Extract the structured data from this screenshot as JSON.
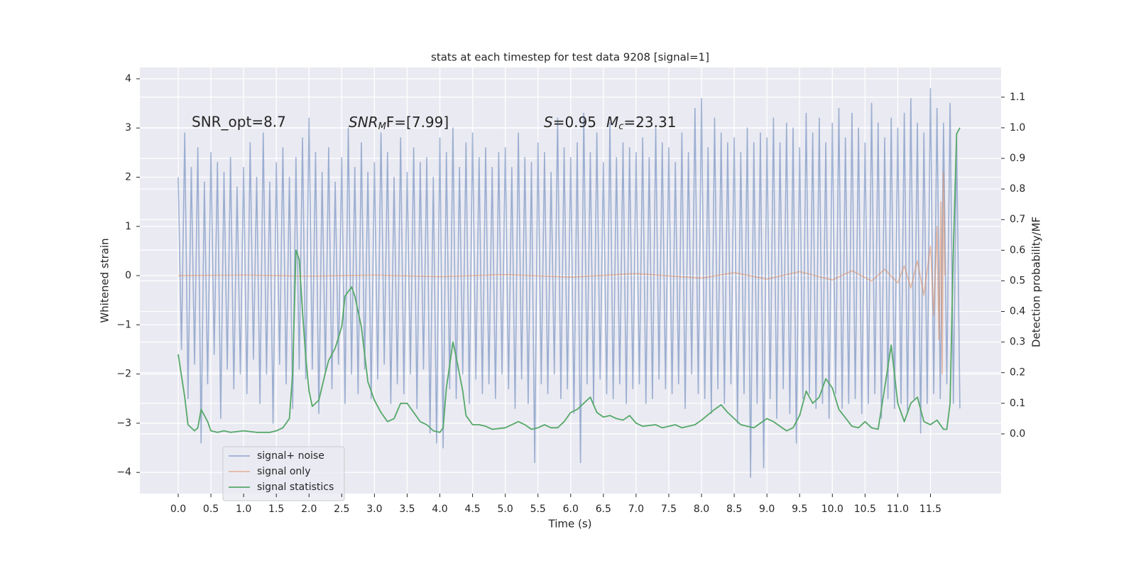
{
  "chart_data": {
    "type": "line",
    "title": "stats at each timestep for test data 9208 [signal=1]",
    "xlabel": "Time (s)",
    "ylabel": "Whitened strain",
    "y2label": "Detection probability/MF",
    "annotations": [
      [
        "SNR_opt=8.7"
      ],
      [
        "SNR",
        "M",
        "F=[7.99]"
      ],
      [
        "S",
        "=0.95",
        "M",
        "c",
        "=23.31"
      ]
    ],
    "grid": true,
    "legend": "lower left",
    "xlim": [
      -0.586,
      12.58
    ],
    "ylim": [
      -4.43,
      4.23
    ],
    "y2lim": [
      -0.195,
      1.197
    ],
    "xticks": [
      {
        "value": 0,
        "label": "0.0"
      },
      0.5,
      {
        "value": 1,
        "label": "1.0"
      },
      1.5,
      {
        "value": 2,
        "label": "2.0"
      },
      2.5,
      {
        "value": 3,
        "label": "3.0"
      },
      3.5,
      {
        "value": 4,
        "label": "4.0"
      },
      4.5,
      {
        "value": 5,
        "label": "5.0"
      },
      5.5,
      {
        "value": 6,
        "label": "6.0"
      },
      6.5,
      {
        "value": 7,
        "label": "7.0"
      },
      7.5,
      {
        "value": 8,
        "label": "8.0"
      },
      8.5,
      {
        "value": 9,
        "label": "9.0"
      },
      9.5,
      {
        "value": 10,
        "label": "10.0"
      },
      10.5,
      {
        "value": 11,
        "label": "11.0"
      },
      11.5
    ],
    "yticks": [
      {
        "value": -4,
        "label": "−4"
      },
      {
        "value": -3,
        "label": "−3"
      },
      {
        "value": -2,
        "label": "−2"
      },
      {
        "value": -1,
        "label": "−1"
      },
      0,
      1,
      2,
      3,
      4
    ],
    "y2ticks": [
      {
        "value": 0,
        "label": "0.0"
      },
      0.1,
      0.2,
      0.3,
      0.4,
      0.5,
      0.6,
      0.7,
      0.8,
      0.9,
      {
        "value": 1,
        "label": "1.0"
      },
      1.1
    ],
    "series": [
      {
        "name": "signal+ noise",
        "color": "#4c72b0",
        "opacity": 0.5,
        "axis": "y",
        "x": [
          0,
          0.05,
          0.1,
          0.15,
          0.2,
          0.25,
          0.3,
          0.35,
          0.4,
          0.45,
          0.5,
          0.55,
          0.6,
          0.65,
          0.7,
          0.75,
          0.8,
          0.85,
          0.9,
          0.95,
          1,
          1.05,
          1.1,
          1.15,
          1.2,
          1.25,
          1.3,
          1.35,
          1.4,
          1.45,
          1.5,
          1.55,
          1.6,
          1.65,
          1.7,
          1.75,
          1.8,
          1.85,
          1.9,
          1.95,
          2,
          2.05,
          2.1,
          2.15,
          2.2,
          2.25,
          2.3,
          2.35,
          2.4,
          2.45,
          2.5,
          2.55,
          2.6,
          2.65,
          2.7,
          2.75,
          2.8,
          2.85,
          2.9,
          2.95,
          3,
          3.05,
          3.1,
          3.15,
          3.2,
          3.25,
          3.3,
          3.35,
          3.4,
          3.45,
          3.5,
          3.55,
          3.6,
          3.65,
          3.7,
          3.75,
          3.8,
          3.85,
          3.9,
          3.95,
          4,
          4.05,
          4.1,
          4.15,
          4.2,
          4.25,
          4.3,
          4.35,
          4.4,
          4.45,
          4.5,
          4.55,
          4.6,
          4.65,
          4.7,
          4.75,
          4.8,
          4.85,
          4.9,
          4.95,
          5,
          5.05,
          5.1,
          5.15,
          5.2,
          5.25,
          5.3,
          5.35,
          5.4,
          5.45,
          5.5,
          5.55,
          5.6,
          5.65,
          5.7,
          5.75,
          5.8,
          5.85,
          5.9,
          5.95,
          6,
          6.05,
          6.1,
          6.15,
          6.2,
          6.25,
          6.3,
          6.35,
          6.4,
          6.45,
          6.5,
          6.55,
          6.6,
          6.65,
          6.7,
          6.75,
          6.8,
          6.85,
          6.9,
          6.95,
          7,
          7.05,
          7.1,
          7.15,
          7.2,
          7.25,
          7.3,
          7.35,
          7.4,
          7.45,
          7.5,
          7.55,
          7.6,
          7.65,
          7.7,
          7.75,
          7.8,
          7.85,
          7.9,
          7.95,
          8,
          8.05,
          8.1,
          8.15,
          8.2,
          8.25,
          8.3,
          8.35,
          8.4,
          8.45,
          8.5,
          8.55,
          8.6,
          8.65,
          8.7,
          8.75,
          8.8,
          8.85,
          8.9,
          8.95,
          9,
          9.05,
          9.1,
          9.15,
          9.2,
          9.25,
          9.3,
          9.35,
          9.4,
          9.45,
          9.5,
          9.55,
          9.6,
          9.65,
          9.7,
          9.75,
          9.8,
          9.85,
          9.9,
          9.95,
          10,
          10.05,
          10.1,
          10.15,
          10.2,
          10.25,
          10.3,
          10.35,
          10.4,
          10.45,
          10.5,
          10.55,
          10.6,
          10.65,
          10.7,
          10.75,
          10.8,
          10.85,
          10.9,
          10.95,
          11,
          11.05,
          11.1,
          11.15,
          11.2,
          11.25,
          11.3,
          11.35,
          11.4,
          11.45,
          11.5,
          11.55,
          11.6,
          11.65,
          11.7,
          11.75,
          11.8,
          11.85,
          11.9,
          11.95
        ],
        "values": [
          2.0,
          -1.5,
          2.9,
          -2.5,
          2.2,
          -1.8,
          2.6,
          -3.4,
          1.9,
          -2.2,
          2.5,
          -1.6,
          2.3,
          -2.9,
          2.1,
          -1.9,
          2.4,
          -2.3,
          1.8,
          -2.0,
          2.2,
          -2.4,
          2.7,
          -1.7,
          2.0,
          -2.6,
          2.9,
          -2.0,
          1.9,
          -3.0,
          2.3,
          -1.8,
          2.6,
          -2.2,
          2.0,
          -2.7,
          2.4,
          -1.9,
          2.8,
          -2.1,
          3.2,
          -1.9,
          2.5,
          -2.8,
          2.1,
          -2.0,
          2.6,
          -2.3,
          1.9,
          -1.8,
          2.4,
          -2.6,
          3.0,
          -2.0,
          2.2,
          -2.4,
          2.7,
          -1.9,
          2.1,
          -2.5,
          2.3,
          -2.1,
          2.9,
          -1.8,
          2.5,
          -2.6,
          2.0,
          -2.2,
          2.8,
          -2.4,
          2.1,
          -2.0,
          2.6,
          -2.7,
          2.3,
          -1.9,
          2.4,
          -3.2,
          2.0,
          -3.4,
          2.8,
          -3.5,
          2.5,
          -2.3,
          3.0,
          -2.5,
          2.2,
          -2.0,
          2.7,
          -2.6,
          2.9,
          -2.1,
          2.4,
          -2.4,
          2.6,
          -2.2,
          2.2,
          -2.5,
          2.5,
          -2.0,
          2.6,
          -2.3,
          2.2,
          -2.7,
          2.9,
          -2.1,
          2.4,
          -2.6,
          2.3,
          -3.8,
          2.7,
          -2.2,
          2.5,
          -2.4,
          2.1,
          -2.0,
          3.2,
          -2.5,
          2.6,
          -2.3,
          2.4,
          -2.8,
          2.7,
          -3.8,
          3.3,
          -2.2,
          2.5,
          -2.6,
          2.9,
          -2.1,
          2.3,
          -2.4,
          3.1,
          -2.5,
          2.4,
          -2.2,
          2.7,
          -2.6,
          2.6,
          -2.3,
          2.5,
          -2.2,
          2.8,
          -2.6,
          2.4,
          -2.5,
          3.0,
          -2.1,
          2.7,
          -2.3,
          2.6,
          -2.4,
          2.3,
          -2.2,
          2.9,
          -2.7,
          2.5,
          -2.0,
          3.4,
          -2.4,
          3.6,
          -2.5,
          2.6,
          -2.8,
          3.2,
          -2.3,
          2.9,
          -2.6,
          2.7,
          -2.2,
          2.8,
          -3.0,
          2.5,
          -2.4,
          3.0,
          -4.1,
          2.7,
          -2.6,
          2.9,
          -3.9,
          2.8,
          -2.5,
          3.2,
          -2.9,
          2.7,
          -2.3,
          3.1,
          -2.8,
          3.0,
          -3.4,
          2.6,
          -2.5,
          3.3,
          -2.4,
          2.9,
          -2.7,
          3.2,
          -2.6,
          2.7,
          -2.9,
          3.1,
          -2.4,
          3.4,
          -2.7,
          2.8,
          -2.6,
          3.3,
          -2.5,
          3.0,
          -2.8,
          2.7,
          -2.6,
          3.5,
          -2.4,
          3.1,
          -2.9,
          2.8,
          -2.5,
          3.2,
          -2.7,
          3.0,
          -2.6,
          3.3,
          -2.8,
          3.6,
          -2.5,
          3.1,
          -3.2,
          2.9,
          -2.6,
          3.8,
          -2.4,
          3.4,
          -2.5,
          3.1,
          -2.2,
          3.5,
          -2.6,
          2.8,
          -2.7
        ]
      },
      {
        "name": "signal only",
        "color": "#dd8452",
        "opacity": 0.5,
        "axis": "y",
        "x": [
          0,
          1,
          2,
          3,
          4,
          5,
          6,
          7,
          8,
          8.5,
          9,
          9.5,
          10,
          10.3,
          10.6,
          10.8,
          11,
          11.1,
          11.2,
          11.3,
          11.4,
          11.5,
          11.55,
          11.6,
          11.63,
          11.66,
          11.68,
          11.7,
          11.72
        ],
        "values": [
          0,
          0.01,
          -0.01,
          0.01,
          -0.02,
          0.02,
          -0.03,
          0.04,
          -0.05,
          0.06,
          -0.07,
          0.08,
          -0.09,
          0.1,
          -0.11,
          0.13,
          -0.15,
          0.2,
          -0.25,
          0.3,
          -0.4,
          0.6,
          -0.8,
          1.0,
          -1.3,
          1.5,
          -2.0,
          2.1,
          0
        ]
      },
      {
        "name": "signal statistics",
        "color": "#55a868",
        "opacity": 1,
        "axis": "y2",
        "x": [
          0,
          0.1,
          0.15,
          0.25,
          0.3,
          0.35,
          0.45,
          0.5,
          0.6,
          0.7,
          0.8,
          1,
          1.2,
          1.4,
          1.5,
          1.6,
          1.7,
          1.75,
          1.8,
          1.85,
          1.9,
          1.95,
          2,
          2.05,
          2.15,
          2.25,
          2.3,
          2.4,
          2.5,
          2.55,
          2.65,
          2.7,
          2.8,
          2.85,
          2.9,
          3,
          3.1,
          3.2,
          3.3,
          3.4,
          3.5,
          3.6,
          3.7,
          3.8,
          3.9,
          4,
          4.05,
          4.1,
          4.2,
          4.25,
          4.35,
          4.4,
          4.5,
          4.6,
          4.7,
          4.8,
          5,
          5.2,
          5.3,
          5.4,
          5.5,
          5.6,
          5.7,
          5.8,
          5.9,
          6,
          6.1,
          6.2,
          6.3,
          6.4,
          6.5,
          6.6,
          6.7,
          6.8,
          6.9,
          7,
          7.1,
          7.3,
          7.4,
          7.6,
          7.7,
          7.9,
          8,
          8.2,
          8.3,
          8.4,
          8.6,
          8.8,
          9,
          9.1,
          9.3,
          9.4,
          9.5,
          9.6,
          9.7,
          9.8,
          9.9,
          10,
          10.1,
          10.3,
          10.4,
          10.5,
          10.6,
          10.7,
          10.8,
          10.9,
          11,
          11.1,
          11.2,
          11.3,
          11.4,
          11.5,
          11.6,
          11.7,
          11.75,
          11.8,
          11.85,
          11.9,
          11.95
        ],
        "values": [
          0.26,
          0.12,
          0.03,
          0.01,
          0.02,
          0.08,
          0.04,
          0.01,
          0.005,
          0.01,
          0.005,
          0.01,
          0.005,
          0.005,
          0.01,
          0.02,
          0.05,
          0.2,
          0.6,
          0.57,
          0.4,
          0.25,
          0.14,
          0.09,
          0.11,
          0.2,
          0.24,
          0.28,
          0.35,
          0.45,
          0.48,
          0.45,
          0.35,
          0.26,
          0.17,
          0.11,
          0.07,
          0.04,
          0.05,
          0.1,
          0.1,
          0.07,
          0.04,
          0.03,
          0.01,
          0.005,
          0.02,
          0.15,
          0.3,
          0.25,
          0.14,
          0.06,
          0.03,
          0.03,
          0.025,
          0.015,
          0.02,
          0.04,
          0.03,
          0.015,
          0.02,
          0.03,
          0.02,
          0.02,
          0.04,
          0.07,
          0.08,
          0.1,
          0.12,
          0.07,
          0.055,
          0.06,
          0.05,
          0.045,
          0.06,
          0.035,
          0.025,
          0.03,
          0.02,
          0.03,
          0.02,
          0.03,
          0.045,
          0.08,
          0.095,
          0.07,
          0.03,
          0.02,
          0.05,
          0.04,
          0.01,
          0.02,
          0.06,
          0.14,
          0.1,
          0.12,
          0.18,
          0.15,
          0.08,
          0.025,
          0.02,
          0.04,
          0.02,
          0.015,
          0.15,
          0.29,
          0.1,
          0.04,
          0.1,
          0.12,
          0.04,
          0.03,
          0.045,
          0.015,
          0.015,
          0.1,
          0.6,
          0.98,
          1.0
        ]
      }
    ]
  }
}
